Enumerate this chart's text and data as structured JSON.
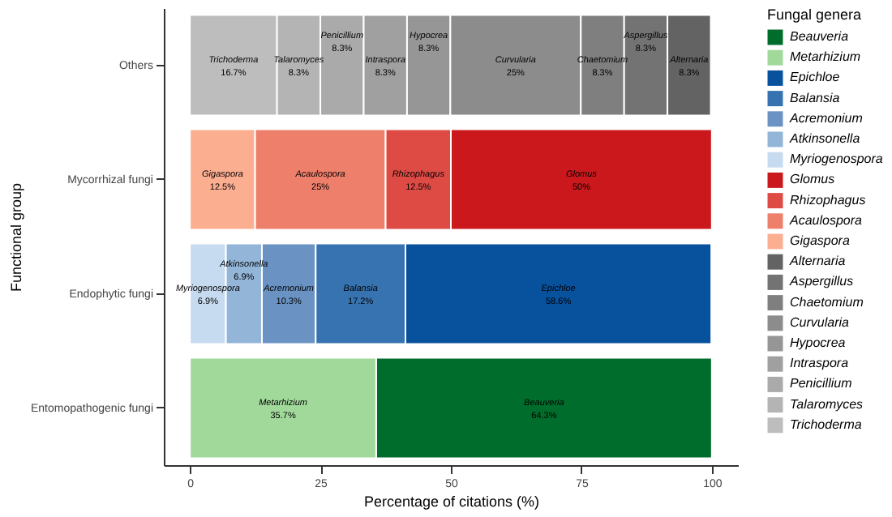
{
  "chart_data": {
    "type": "bar",
    "orientation": "horizontal",
    "stacked": true,
    "xlabel": "Percentage of citations (%)",
    "ylabel": "Functional group",
    "legend_title": "Fungal genera",
    "legend": "right",
    "grid": false,
    "xlim": [
      -5,
      105
    ],
    "xticks": [
      0,
      25,
      50,
      75,
      100
    ],
    "categories": [
      "Others",
      "Mycorrhizal fungi",
      "Endophytic fungi",
      "Entomopathogenic fungi"
    ],
    "series": [
      {
        "name": "Trichoderma",
        "color": "#bdbdbd",
        "values": [
          16.7,
          null,
          null,
          null
        ],
        "value_labels": [
          "16.7%",
          null,
          null,
          null
        ]
      },
      {
        "name": "Talaromyces",
        "color": "#b4b4b4",
        "values": [
          8.3,
          null,
          null,
          null
        ],
        "value_labels": [
          "8.3%",
          null,
          null,
          null
        ]
      },
      {
        "name": "Penicillium",
        "color": "#aaaaaa",
        "values": [
          8.3,
          null,
          null,
          null
        ],
        "value_labels": [
          "8.3%",
          null,
          null,
          null
        ]
      },
      {
        "name": "Intraspora",
        "color": "#a0a0a0",
        "values": [
          8.3,
          null,
          null,
          null
        ],
        "value_labels": [
          "8.3%",
          null,
          null,
          null
        ]
      },
      {
        "name": "Hypocrea",
        "color": "#969696",
        "values": [
          8.3,
          null,
          null,
          null
        ],
        "value_labels": [
          "8.3%",
          null,
          null,
          null
        ]
      },
      {
        "name": "Curvularia",
        "color": "#8c8c8c",
        "values": [
          25,
          null,
          null,
          null
        ],
        "value_labels": [
          "25%",
          null,
          null,
          null
        ]
      },
      {
        "name": "Chaetomium",
        "color": "#7f7f7f",
        "values": [
          8.3,
          null,
          null,
          null
        ],
        "value_labels": [
          "8.3%",
          null,
          null,
          null
        ]
      },
      {
        "name": "Aspergillus",
        "color": "#737373",
        "values": [
          8.3,
          null,
          null,
          null
        ],
        "value_labels": [
          "8.3%",
          null,
          null,
          null
        ]
      },
      {
        "name": "Alternaria",
        "color": "#636363",
        "values": [
          8.3,
          null,
          null,
          null
        ],
        "value_labels": [
          "8.3%",
          null,
          null,
          null
        ]
      },
      {
        "name": "Gigaspora",
        "color": "#fcae91",
        "values": [
          null,
          12.5,
          null,
          null
        ],
        "value_labels": [
          null,
          "12.5%",
          null,
          null
        ]
      },
      {
        "name": "Acaulospora",
        "color": "#ee7f6b",
        "values": [
          null,
          25,
          null,
          null
        ],
        "value_labels": [
          null,
          "25%",
          null,
          null
        ]
      },
      {
        "name": "Rhizophagus",
        "color": "#de4b45",
        "values": [
          null,
          12.5,
          null,
          null
        ],
        "value_labels": [
          null,
          "12.5%",
          null,
          null
        ]
      },
      {
        "name": "Glomus",
        "color": "#cb181d",
        "values": [
          null,
          50,
          null,
          null
        ],
        "value_labels": [
          null,
          "50%",
          null,
          null
        ]
      },
      {
        "name": "Myriogenospora",
        "color": "#c6dbef",
        "values": [
          null,
          null,
          6.9,
          null
        ],
        "value_labels": [
          null,
          null,
          "6.9%",
          null
        ]
      },
      {
        "name": "Atkinsonella",
        "color": "#93b5d8",
        "values": [
          null,
          null,
          6.9,
          null
        ],
        "value_labels": [
          null,
          null,
          "6.9%",
          null
        ]
      },
      {
        "name": "Acremonium",
        "color": "#6a93c4",
        "values": [
          null,
          null,
          10.3,
          null
        ],
        "value_labels": [
          null,
          null,
          "10.3%",
          null
        ]
      },
      {
        "name": "Balansia",
        "color": "#3773b0",
        "values": [
          null,
          null,
          17.2,
          null
        ],
        "value_labels": [
          null,
          null,
          "17.2%",
          null
        ]
      },
      {
        "name": "Epichloe",
        "color": "#08519c",
        "values": [
          null,
          null,
          58.6,
          null
        ],
        "value_labels": [
          null,
          null,
          "58.6%",
          null
        ]
      },
      {
        "name": "Metarhizium",
        "color": "#a1d99b",
        "values": [
          null,
          null,
          null,
          35.7
        ],
        "value_labels": [
          null,
          null,
          null,
          "35.7%"
        ]
      },
      {
        "name": "Beauveria",
        "color": "#006d2c",
        "values": [
          null,
          null,
          null,
          64.3
        ],
        "value_labels": [
          null,
          null,
          null,
          "64.3%"
        ]
      }
    ]
  }
}
